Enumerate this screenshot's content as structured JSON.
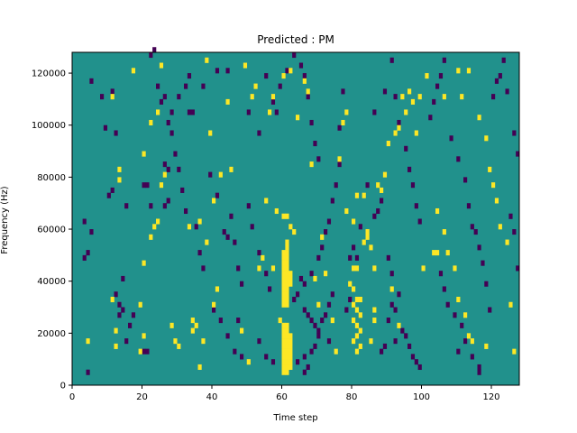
{
  "chart_data": {
    "type": "heatmap",
    "title": "Predicted : PM",
    "xlabel": "Time step",
    "ylabel": "Frequency (Hz)",
    "xlim": [
      0,
      128
    ],
    "ylim": [
      0,
      128000
    ],
    "xticks": [
      0,
      20,
      40,
      60,
      80,
      100,
      120
    ],
    "yticks": [
      0,
      20000,
      40000,
      60000,
      80000,
      100000,
      120000
    ],
    "bin_width_x": 1,
    "bin_height_y": 2000,
    "grid": false,
    "legend": "none",
    "colors": {
      "background": "#21918c",
      "low": "#440154",
      "high": "#fde725"
    },
    "cells_high": [
      [
        60,
        4000
      ],
      [
        60,
        6000
      ],
      [
        60,
        8000
      ],
      [
        60,
        10000
      ],
      [
        60,
        12000
      ],
      [
        60,
        14000
      ],
      [
        60,
        16000
      ],
      [
        60,
        18000
      ],
      [
        60,
        20000
      ],
      [
        60,
        22000
      ],
      [
        61,
        4000
      ],
      [
        61,
        6000
      ],
      [
        61,
        8000
      ],
      [
        61,
        10000
      ],
      [
        61,
        12000
      ],
      [
        61,
        14000
      ],
      [
        61,
        16000
      ],
      [
        61,
        18000
      ],
      [
        61,
        20000
      ],
      [
        61,
        22000
      ],
      [
        62,
        6000
      ],
      [
        62,
        8000
      ],
      [
        62,
        10000
      ],
      [
        62,
        12000
      ],
      [
        62,
        14000
      ],
      [
        62,
        16000
      ],
      [
        62,
        18000
      ],
      [
        60,
        30000
      ],
      [
        60,
        32000
      ],
      [
        60,
        34000
      ],
      [
        60,
        36000
      ],
      [
        60,
        38000
      ],
      [
        60,
        40000
      ],
      [
        60,
        42000
      ],
      [
        60,
        44000
      ],
      [
        60,
        46000
      ],
      [
        60,
        48000
      ],
      [
        60,
        50000
      ],
      [
        61,
        30000
      ],
      [
        61,
        32000
      ],
      [
        61,
        34000
      ],
      [
        61,
        36000
      ],
      [
        61,
        38000
      ],
      [
        61,
        40000
      ],
      [
        61,
        42000
      ],
      [
        61,
        44000
      ],
      [
        61,
        46000
      ],
      [
        61,
        48000
      ],
      [
        61,
        50000
      ],
      [
        61,
        52000
      ],
      [
        61,
        54000
      ],
      [
        62,
        38000
      ],
      [
        62,
        40000
      ],
      [
        62,
        42000
      ],
      [
        60,
        64000
      ],
      [
        61,
        64000
      ],
      [
        62,
        60000
      ],
      [
        63,
        58000
      ],
      [
        58,
        66000
      ],
      [
        55,
        70000
      ],
      [
        54,
        48000
      ],
      [
        53,
        44000
      ],
      [
        59,
        24000
      ],
      [
        57,
        44000
      ],
      [
        50,
        8000
      ],
      [
        81,
        12000
      ],
      [
        82,
        14000
      ],
      [
        80,
        16000
      ],
      [
        81,
        18000
      ],
      [
        82,
        20000
      ],
      [
        81,
        22000
      ],
      [
        80,
        24000
      ],
      [
        82,
        26000
      ],
      [
        81,
        28000
      ],
      [
        80,
        30000
      ],
      [
        81,
        32000
      ],
      [
        82,
        32000
      ],
      [
        80,
        36000
      ],
      [
        79,
        38000
      ],
      [
        80,
        44000
      ],
      [
        81,
        44000
      ],
      [
        83,
        54000
      ],
      [
        84,
        56000
      ],
      [
        84,
        58000
      ],
      [
        80,
        62000
      ],
      [
        81,
        72000
      ],
      [
        83,
        72000
      ],
      [
        85,
        52000
      ],
      [
        86,
        44000
      ],
      [
        86,
        28000
      ],
      [
        86,
        24000
      ],
      [
        85,
        16000
      ],
      [
        103,
        50000
      ],
      [
        104,
        50000
      ],
      [
        100,
        44000
      ],
      [
        99,
        110000
      ],
      [
        94,
        110000
      ],
      [
        106,
        110000
      ],
      [
        111,
        110000
      ],
      [
        101,
        118000
      ],
      [
        110,
        120000
      ],
      [
        113,
        120000
      ],
      [
        4,
        16000
      ],
      [
        12,
        14000
      ],
      [
        12,
        20000
      ],
      [
        11,
        32000
      ],
      [
        13,
        78000
      ],
      [
        13,
        82000
      ],
      [
        19,
        12000
      ],
      [
        20,
        18000
      ],
      [
        19,
        30000
      ],
      [
        20,
        46000
      ],
      [
        22,
        56000
      ],
      [
        20,
        88000
      ],
      [
        22,
        100000
      ],
      [
        24,
        104000
      ],
      [
        25,
        122000
      ],
      [
        17,
        120000
      ],
      [
        11,
        110000
      ],
      [
        23,
        60000
      ],
      [
        24,
        62000
      ],
      [
        25,
        76000
      ],
      [
        26,
        80000
      ],
      [
        28,
        22000
      ],
      [
        29,
        16000
      ],
      [
        30,
        14000
      ],
      [
        34,
        20000
      ],
      [
        35,
        22000
      ],
      [
        36,
        6000
      ],
      [
        34,
        24000
      ],
      [
        37,
        16000
      ],
      [
        33,
        60000
      ],
      [
        36,
        62000
      ],
      [
        38,
        54000
      ],
      [
        38,
        124000
      ],
      [
        40,
        70000
      ],
      [
        42,
        80000
      ],
      [
        39,
        96000
      ],
      [
        41,
        36000
      ],
      [
        40,
        30000
      ],
      [
        44,
        108000
      ],
      [
        45,
        82000
      ],
      [
        49,
        122000
      ],
      [
        48,
        20000
      ],
      [
        51,
        110000
      ],
      [
        52,
        114000
      ],
      [
        56,
        104000
      ],
      [
        57,
        110000
      ],
      [
        60,
        118000
      ],
      [
        62,
        120000
      ],
      [
        64,
        102000
      ],
      [
        66,
        116000
      ],
      [
        67,
        112000
      ],
      [
        68,
        84000
      ],
      [
        70,
        30000
      ],
      [
        69,
        40000
      ],
      [
        71,
        56000
      ],
      [
        72,
        42000
      ],
      [
        74,
        24000
      ],
      [
        75,
        12000
      ],
      [
        76,
        86000
      ],
      [
        77,
        100000
      ],
      [
        78,
        104000
      ],
      [
        78,
        66000
      ],
      [
        88,
        74000
      ],
      [
        87,
        76000
      ],
      [
        89,
        80000
      ],
      [
        90,
        92000
      ],
      [
        92,
        96000
      ],
      [
        93,
        98000
      ],
      [
        91,
        36000
      ],
      [
        93,
        22000
      ],
      [
        95,
        104000
      ],
      [
        96,
        112000
      ],
      [
        97,
        108000
      ],
      [
        98,
        96000
      ],
      [
        104,
        66000
      ],
      [
        106,
        58000
      ],
      [
        107,
        50000
      ],
      [
        109,
        44000
      ],
      [
        110,
        32000
      ],
      [
        112,
        26000
      ],
      [
        113,
        18000
      ],
      [
        114,
        16000
      ],
      [
        116,
        102000
      ],
      [
        118,
        94000
      ],
      [
        119,
        82000
      ],
      [
        120,
        76000
      ],
      [
        121,
        70000
      ],
      [
        122,
        60000
      ],
      [
        124,
        54000
      ],
      [
        125,
        30000
      ],
      [
        126,
        12000
      ],
      [
        118,
        14000
      ]
    ],
    "cells_low": [
      [
        4,
        4000
      ],
      [
        3,
        48000
      ],
      [
        4,
        50000
      ],
      [
        3,
        62000
      ],
      [
        5,
        58000
      ],
      [
        9,
        98000
      ],
      [
        8,
        110000
      ],
      [
        5,
        116000
      ],
      [
        11,
        112000
      ],
      [
        12,
        96000
      ],
      [
        10,
        72000
      ],
      [
        11,
        74000
      ],
      [
        15,
        68000
      ],
      [
        14,
        40000
      ],
      [
        13,
        26000
      ],
      [
        14,
        28000
      ],
      [
        16,
        22000
      ],
      [
        17,
        26000
      ],
      [
        20,
        12000
      ],
      [
        21,
        12000
      ],
      [
        15,
        16000
      ],
      [
        13,
        30000
      ],
      [
        12,
        34000
      ],
      [
        20,
        76000
      ],
      [
        21,
        76000
      ],
      [
        22,
        68000
      ],
      [
        26,
        68000
      ],
      [
        27,
        70000
      ],
      [
        26,
        84000
      ],
      [
        27,
        82000
      ],
      [
        25,
        108000
      ],
      [
        24,
        114000
      ],
      [
        22,
        126000
      ],
      [
        23,
        128000
      ],
      [
        28,
        104000
      ],
      [
        30,
        110000
      ],
      [
        33,
        104000
      ],
      [
        34,
        104000
      ],
      [
        32,
        114000
      ],
      [
        33,
        118000
      ],
      [
        37,
        114000
      ],
      [
        41,
        120000
      ],
      [
        44,
        120000
      ],
      [
        50,
        104000
      ],
      [
        53,
        96000
      ],
      [
        55,
        118000
      ],
      [
        57,
        108000
      ],
      [
        39,
        80000
      ],
      [
        41,
        72000
      ],
      [
        43,
        58000
      ],
      [
        44,
        56000
      ],
      [
        45,
        64000
      ],
      [
        46,
        54000
      ],
      [
        47,
        44000
      ],
      [
        48,
        38000
      ],
      [
        50,
        68000
      ],
      [
        51,
        60000
      ],
      [
        53,
        50000
      ],
      [
        55,
        42000
      ],
      [
        56,
        36000
      ],
      [
        40,
        28000
      ],
      [
        42,
        24000
      ],
      [
        44,
        18000
      ],
      [
        46,
        12000
      ],
      [
        48,
        10000
      ],
      [
        47,
        24000
      ],
      [
        53,
        16000
      ],
      [
        55,
        10000
      ],
      [
        57,
        8000
      ],
      [
        64,
        8000
      ],
      [
        66,
        4000
      ],
      [
        66,
        10000
      ],
      [
        67,
        6000
      ],
      [
        68,
        12000
      ],
      [
        69,
        14000
      ],
      [
        70,
        20000
      ],
      [
        71,
        24000
      ],
      [
        72,
        26000
      ],
      [
        73,
        30000
      ],
      [
        74,
        34000
      ],
      [
        68,
        42000
      ],
      [
        70,
        48000
      ],
      [
        71,
        52000
      ],
      [
        72,
        58000
      ],
      [
        73,
        62000
      ],
      [
        74,
        70000
      ],
      [
        75,
        76000
      ],
      [
        76,
        84000
      ],
      [
        76,
        98000
      ],
      [
        77,
        112000
      ],
      [
        63,
        32000
      ],
      [
        64,
        34000
      ],
      [
        65,
        40000
      ],
      [
        66,
        38000
      ],
      [
        66,
        28000
      ],
      [
        67,
        26000
      ],
      [
        68,
        24000
      ],
      [
        69,
        22000
      ],
      [
        70,
        18000
      ],
      [
        73,
        16000
      ],
      [
        78,
        28000
      ],
      [
        79,
        32000
      ],
      [
        79,
        48000
      ],
      [
        80,
        52000
      ],
      [
        81,
        48000
      ],
      [
        82,
        60000
      ],
      [
        84,
        76000
      ],
      [
        86,
        64000
      ],
      [
        87,
        66000
      ],
      [
        88,
        70000
      ],
      [
        86,
        104000
      ],
      [
        89,
        112000
      ],
      [
        91,
        124000
      ],
      [
        92,
        110000
      ],
      [
        93,
        100000
      ],
      [
        95,
        90000
      ],
      [
        96,
        82000
      ],
      [
        97,
        76000
      ],
      [
        98,
        68000
      ],
      [
        99,
        62000
      ],
      [
        90,
        48000
      ],
      [
        91,
        42000
      ],
      [
        92,
        28000
      ],
      [
        93,
        34000
      ],
      [
        94,
        20000
      ],
      [
        95,
        18000
      ],
      [
        96,
        14000
      ],
      [
        97,
        10000
      ],
      [
        98,
        8000
      ],
      [
        99,
        6000
      ],
      [
        88,
        12000
      ],
      [
        89,
        14000
      ],
      [
        90,
        24000
      ],
      [
        91,
        30000
      ],
      [
        92,
        16000
      ],
      [
        102,
        102000
      ],
      [
        103,
        108000
      ],
      [
        104,
        114000
      ],
      [
        105,
        118000
      ],
      [
        106,
        124000
      ],
      [
        108,
        94000
      ],
      [
        110,
        86000
      ],
      [
        112,
        78000
      ],
      [
        113,
        68000
      ],
      [
        114,
        60000
      ],
      [
        115,
        58000
      ],
      [
        116,
        52000
      ],
      [
        117,
        46000
      ],
      [
        118,
        38000
      ],
      [
        119,
        28000
      ],
      [
        116,
        4000
      ],
      [
        116,
        6000
      ],
      [
        114,
        10000
      ],
      [
        112,
        16000
      ],
      [
        111,
        22000
      ],
      [
        109,
        26000
      ],
      [
        110,
        12000
      ],
      [
        107,
        30000
      ],
      [
        106,
        36000
      ],
      [
        105,
        42000
      ],
      [
        120,
        110000
      ],
      [
        121,
        116000
      ],
      [
        122,
        118000
      ],
      [
        123,
        124000
      ],
      [
        124,
        112000
      ],
      [
        126,
        96000
      ],
      [
        127,
        88000
      ],
      [
        125,
        64000
      ],
      [
        126,
        58000
      ],
      [
        127,
        44000
      ],
      [
        26,
        110000
      ],
      [
        27,
        100000
      ],
      [
        28,
        96000
      ],
      [
        29,
        88000
      ],
      [
        30,
        82000
      ],
      [
        31,
        74000
      ],
      [
        32,
        66000
      ],
      [
        35,
        60000
      ],
      [
        36,
        50000
      ],
      [
        37,
        44000
      ],
      [
        58,
        104000
      ],
      [
        59,
        114000
      ],
      [
        61,
        120000
      ],
      [
        63,
        126000
      ],
      [
        65,
        122000
      ],
      [
        66,
        118000
      ],
      [
        67,
        110000
      ],
      [
        68,
        100000
      ],
      [
        69,
        92000
      ],
      [
        70,
        86000
      ]
    ]
  }
}
